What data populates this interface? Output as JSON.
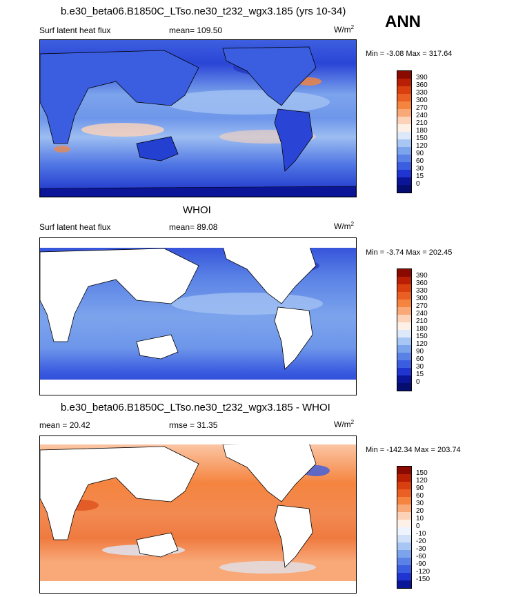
{
  "season": "ANN",
  "panel1": {
    "title": "b.e30_beta06.B1850C_LTso.ne30_t232_wgx3.185 (yrs 10-34)",
    "variable": "Surf latent heat flux",
    "mean_label": "mean=",
    "mean": "109.50",
    "units": "W/m",
    "units_exp": "2",
    "min_label": "Min =",
    "min": "-3.08",
    "max_label": "Max =",
    "max": "317.64"
  },
  "panel2": {
    "title": "WHOI",
    "variable": "Surf latent heat flux",
    "mean_label": "mean=",
    "mean": "89.08",
    "units": "W/m",
    "units_exp": "2",
    "min_label": "Min =",
    "min": "-3.74",
    "max_label": "Max =",
    "max": "202.45"
  },
  "panel3": {
    "title": "b.e30_beta06.B1850C_LTso.ne30_t232_wgx3.185 - WHOI",
    "mean_label": "mean =",
    "mean": "20.42",
    "rmse_label": "rmse =",
    "rmse": "31.35",
    "units": "W/m",
    "units_exp": "2",
    "min_label": "Min =",
    "min": "-142.34",
    "max_label": "Max =",
    "max": "203.74"
  },
  "colorbar_abs": {
    "labels": [
      "390",
      "360",
      "330",
      "300",
      "270",
      "240",
      "210",
      "180",
      "150",
      "120",
      "90",
      "60",
      "30",
      "15",
      "0"
    ],
    "colors": [
      "#8b0a00",
      "#b81f05",
      "#d8400f",
      "#ea5f24",
      "#f5843f",
      "#f9a878",
      "#fcd3b9",
      "#fdf0e6",
      "#dde9fb",
      "#a8c6f3",
      "#7ca4ec",
      "#5a82e6",
      "#3b5de0",
      "#2035cf",
      "#0b1598",
      "#050d6e"
    ]
  },
  "colorbar_diff": {
    "labels": [
      "150",
      "120",
      "90",
      "60",
      "30",
      "20",
      "10",
      "0",
      "-10",
      "-20",
      "-30",
      "-60",
      "-90",
      "-120",
      "-150"
    ],
    "colors": [
      "#8b0a00",
      "#b81f05",
      "#d8400f",
      "#ea5f24",
      "#f5843f",
      "#f9a878",
      "#fcd3b9",
      "#fdf0e6",
      "#eef4fd",
      "#cfe0f8",
      "#a8c6f3",
      "#7ca4ec",
      "#5a82e6",
      "#3b5de0",
      "#2035cf",
      "#0b1598"
    ]
  }
}
